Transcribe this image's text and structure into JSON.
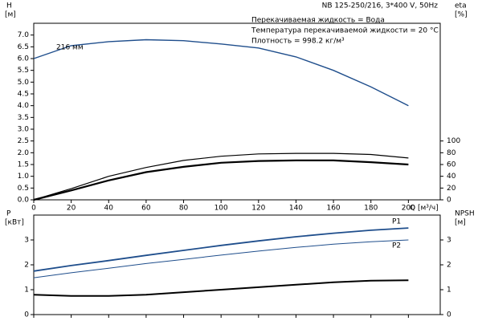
{
  "chart_data": [
    {
      "type": "line",
      "title": "NB 125-250/216, 3*400 V, 50Hz",
      "annotations": [
        "Перекачиваемая жидкость = Вода",
        "Температура перекачиваемой жидкости = 20 °C",
        "Плотность = 998.2 кг/м³"
      ],
      "ylabel": "H",
      "yunit": "[м]",
      "y2label": "eta",
      "y2unit": "[%]",
      "xlabel": "Q [м³/ч]",
      "x": [
        0,
        20,
        40,
        60,
        80,
        100,
        120,
        140,
        160,
        180,
        200
      ],
      "xlim": [
        0,
        217
      ],
      "xticks": [
        0,
        20,
        40,
        60,
        80,
        100,
        120,
        140,
        160,
        180,
        200
      ],
      "ylim": [
        0,
        7.5
      ],
      "yticks": [
        {
          "value": 0,
          "label": "0.0"
        },
        {
          "value": 0.5,
          "label": "0.5"
        },
        {
          "value": 1,
          "label": "1.0"
        },
        {
          "value": 1.5,
          "label": "1.5"
        },
        {
          "value": 2,
          "label": "2.0"
        },
        {
          "value": 2.5,
          "label": "2.5"
        },
        {
          "value": 3,
          "label": "3.0"
        },
        {
          "value": 3.5,
          "label": "3.5"
        },
        {
          "value": 4,
          "label": "4.0"
        },
        {
          "value": 4.5,
          "label": "4.5"
        },
        {
          "value": 5,
          "label": "5.0"
        },
        {
          "value": 5.5,
          "label": "5.5"
        },
        {
          "value": 6,
          "label": "6.0"
        },
        {
          "value": 6.5,
          "label": "6.5"
        },
        {
          "value": 7,
          "label": "7.0"
        }
      ],
      "y2lim": [
        0,
        300
      ],
      "y2ticks": [
        0,
        20,
        40,
        60,
        80,
        100
      ],
      "series": [
        {
          "name": "216 мм",
          "color": "#1f4e8c",
          "values": [
            6.0,
            6.55,
            6.72,
            6.8,
            6.76,
            6.62,
            6.45,
            6.07,
            5.5,
            4.8,
            4.0
          ]
        },
        {
          "color": "#000000",
          "axis": "y2",
          "values": [
            0,
            19,
            40,
            55,
            67,
            74,
            78,
            79,
            79,
            77,
            71
          ]
        },
        {
          "color": "#000000",
          "axis": "y2",
          "values": [
            0,
            16,
            33,
            47,
            56,
            63,
            66,
            67,
            67,
            64,
            60
          ]
        }
      ]
    },
    {
      "type": "line",
      "ylabel": "P",
      "yunit": "[кВт]",
      "y2label": "NPSH",
      "y2unit": "[м]",
      "x": [
        0,
        20,
        40,
        60,
        80,
        100,
        120,
        140,
        160,
        180,
        200
      ],
      "xlim": [
        0,
        217
      ],
      "ylim": [
        0,
        4
      ],
      "yticks": [
        0,
        1,
        2,
        3
      ],
      "y2lim": [
        0,
        4
      ],
      "y2ticks": [
        0,
        1,
        2,
        3
      ],
      "series": [
        {
          "name": "P1",
          "color": "#1f4e8c",
          "values": [
            1.75,
            1.97,
            2.17,
            2.38,
            2.58,
            2.78,
            2.96,
            3.13,
            3.27,
            3.39,
            3.48
          ]
        },
        {
          "name": "P2",
          "color": "#1f4e8c",
          "values": [
            1.48,
            1.68,
            1.86,
            2.05,
            2.22,
            2.39,
            2.55,
            2.7,
            2.83,
            2.93,
            3.0
          ]
        },
        {
          "color": "#000000",
          "axis": "y2",
          "values": [
            0.8,
            0.75,
            0.75,
            0.8,
            0.9,
            1.0,
            1.1,
            1.2,
            1.3,
            1.36,
            1.38
          ]
        }
      ]
    }
  ]
}
